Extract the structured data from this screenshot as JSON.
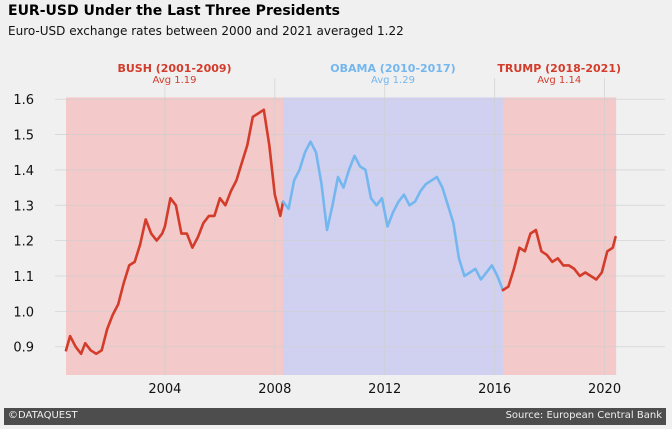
{
  "title": "EUR-USD Under the Last Three Presidents",
  "subtitle": "Euro-USD exchange rates between 2000 and 2021 averaged 1.22",
  "footer": {
    "left": "©DATAQUEST",
    "right": "Source: European Central Bank"
  },
  "chart_data": {
    "type": "line",
    "xlim": [
      2000.0,
      2022.2
    ],
    "ylim": [
      0.82,
      1.66
    ],
    "x_ticks": [
      2004,
      2008,
      2012,
      2016,
      2020
    ],
    "x_tick_labels": [
      "2004",
      "2008",
      "2012",
      "2016",
      "2020"
    ],
    "y_ticks": [
      0.9,
      1.0,
      1.1,
      1.2,
      1.3,
      1.4,
      1.5,
      1.6
    ],
    "y_tick_labels": [
      "0.9",
      "1.0",
      "1.1",
      "1.2",
      "1.3",
      "1.4",
      "1.5",
      "1.6"
    ],
    "grid": true,
    "periods": [
      {
        "label": "BUSH (2001-2009)",
        "avg_label": "Avg 1.19",
        "start": 2000.4,
        "end": 2008.3,
        "color": "#d33c2b",
        "shade": "#f3c9c9"
      },
      {
        "label": "OBAMA (2010-2017)",
        "avg_label": "Avg 1.29",
        "start": 2008.3,
        "end": 2016.3,
        "color": "#74b7ef",
        "shade": "#d0d1f1"
      },
      {
        "label": "TRUMP (2018-2021)",
        "avg_label": "Avg 1.14",
        "start": 2016.3,
        "end": 2020.4,
        "color": "#d33c2b",
        "shade": "#f3c9c9"
      }
    ],
    "series": [
      {
        "color": "#d33c2b",
        "x": [
          2000.4,
          2000.55,
          2000.75,
          2000.95,
          2001.1,
          2001.3,
          2001.5,
          2001.7,
          2001.9,
          2002.1,
          2002.3,
          2002.5,
          2002.7,
          2002.9,
          2003.1,
          2003.3,
          2003.5,
          2003.7,
          2003.9,
          2004.0,
          2004.2,
          2004.4,
          2004.6,
          2004.8,
          2005.0,
          2005.2,
          2005.4,
          2005.6,
          2005.8,
          2006.0,
          2006.2,
          2006.4,
          2006.6,
          2006.8,
          2007.0,
          2007.2,
          2007.4,
          2007.6,
          2007.8,
          2008.0,
          2008.2,
          2008.3
        ],
        "y": [
          0.89,
          0.93,
          0.9,
          0.88,
          0.91,
          0.89,
          0.88,
          0.89,
          0.95,
          0.99,
          1.02,
          1.08,
          1.13,
          1.14,
          1.19,
          1.26,
          1.22,
          1.2,
          1.22,
          1.24,
          1.32,
          1.3,
          1.22,
          1.22,
          1.18,
          1.21,
          1.25,
          1.27,
          1.27,
          1.32,
          1.3,
          1.34,
          1.37,
          1.42,
          1.47,
          1.55,
          1.56,
          1.57,
          1.47,
          1.33,
          1.27,
          1.31
        ]
      },
      {
        "color": "#74b7ef",
        "x": [
          2008.3,
          2008.5,
          2008.7,
          2008.9,
          2009.1,
          2009.3,
          2009.5,
          2009.7,
          2009.9,
          2010.1,
          2010.3,
          2010.5,
          2010.7,
          2010.9,
          2011.1,
          2011.3,
          2011.5,
          2011.7,
          2011.9,
          2012.1,
          2012.3,
          2012.5,
          2012.7,
          2012.9,
          2013.1,
          2013.3,
          2013.5,
          2013.7,
          2013.9,
          2014.1,
          2014.3,
          2014.5,
          2014.7,
          2014.9,
          2015.1,
          2015.3,
          2015.5,
          2015.7,
          2015.9,
          2016.1,
          2016.3
        ],
        "y": [
          1.31,
          1.29,
          1.37,
          1.4,
          1.45,
          1.48,
          1.45,
          1.36,
          1.23,
          1.3,
          1.38,
          1.35,
          1.4,
          1.44,
          1.41,
          1.4,
          1.32,
          1.3,
          1.32,
          1.24,
          1.28,
          1.31,
          1.33,
          1.3,
          1.31,
          1.34,
          1.36,
          1.37,
          1.38,
          1.35,
          1.3,
          1.25,
          1.15,
          1.1,
          1.11,
          1.12,
          1.09,
          1.11,
          1.13,
          1.1,
          1.06
        ]
      },
      {
        "color": "#d33c2b",
        "x": [
          2016.3,
          2016.5,
          2016.7,
          2016.9,
          2017.1,
          2017.3,
          2017.5,
          2017.7,
          2017.9,
          2018.1,
          2018.3,
          2018.5,
          2018.7,
          2018.9,
          2019.1,
          2019.3,
          2019.5,
          2019.7,
          2019.9,
          2020.1,
          2020.3,
          2020.4
        ],
        "y": [
          1.06,
          1.07,
          1.12,
          1.18,
          1.17,
          1.22,
          1.23,
          1.17,
          1.16,
          1.14,
          1.15,
          1.13,
          1.13,
          1.12,
          1.1,
          1.11,
          1.1,
          1.09,
          1.11,
          1.17,
          1.18,
          1.21
        ]
      }
    ]
  }
}
